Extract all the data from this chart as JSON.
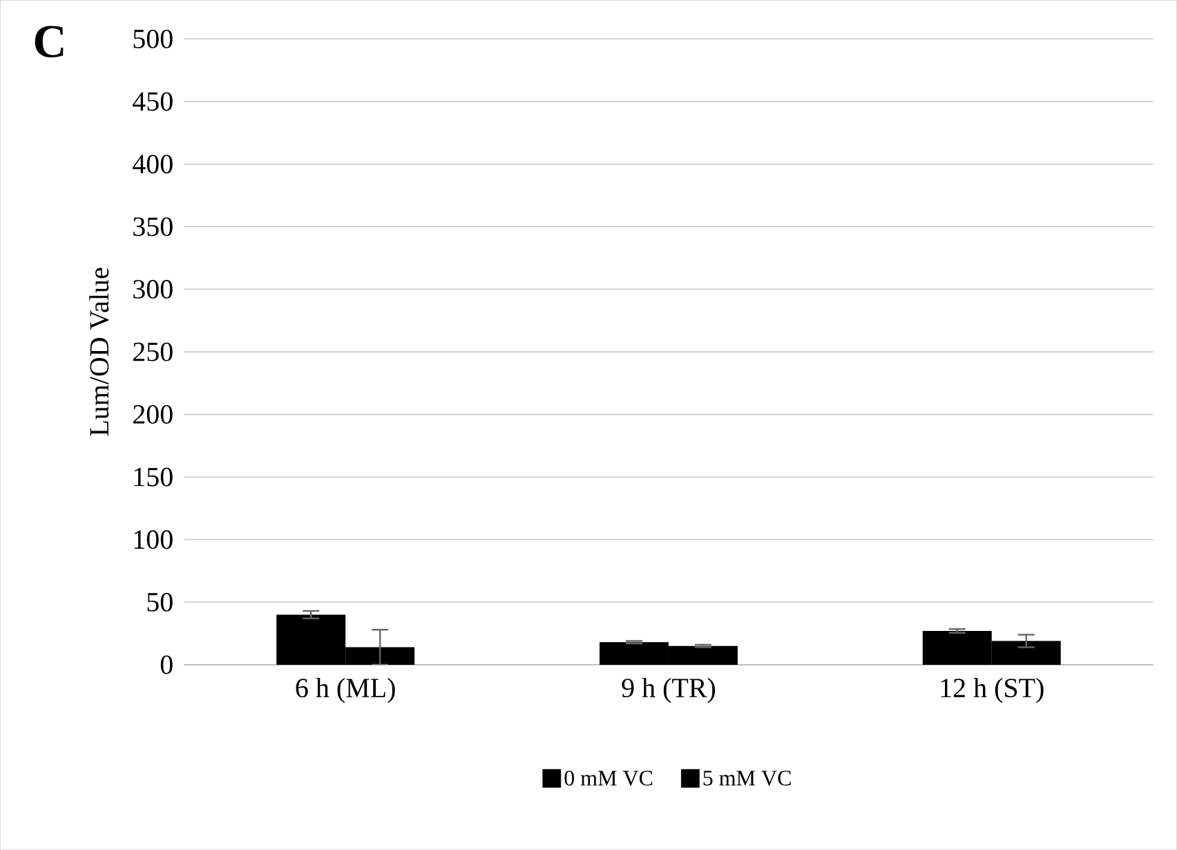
{
  "chart_data": {
    "type": "bar",
    "ylabel": "Lum/OD Value",
    "annotations": [
      "C"
    ],
    "categories": [
      "6 h (ML)",
      "9 h (TR)",
      "12 h (ST)"
    ],
    "series": [
      {
        "name": "0 mM VC",
        "color": "#000000",
        "values": [
          40,
          18,
          27
        ],
        "errors": [
          3,
          1,
          1.5
        ]
      },
      {
        "name": "5 mM VC",
        "color": "#000000",
        "values": [
          14,
          15,
          19
        ],
        "errors": [
          14,
          1,
          5
        ]
      }
    ],
    "ylim": [
      0,
      500
    ],
    "yticks": [
      0,
      50,
      100,
      150,
      200,
      250,
      300,
      350,
      400,
      450,
      500
    ],
    "grid": "y",
    "legend": "bottom"
  }
}
